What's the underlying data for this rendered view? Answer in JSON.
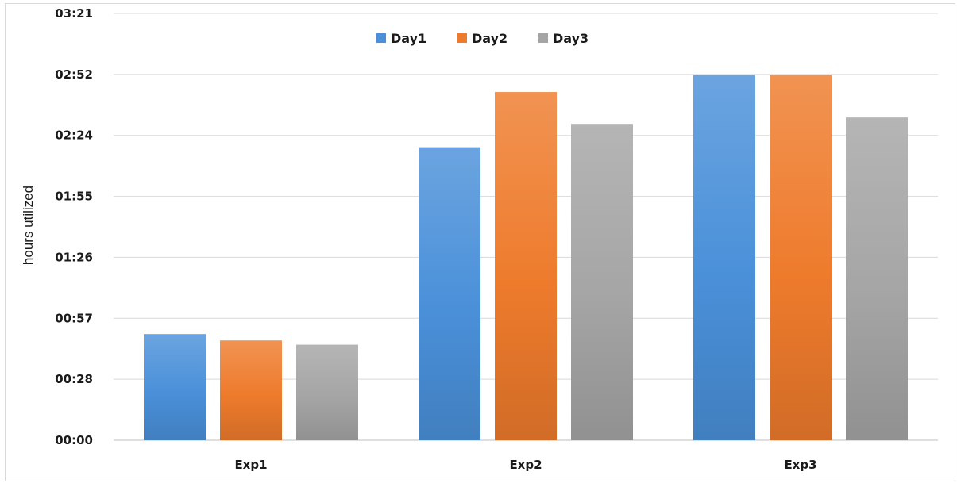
{
  "chart_data": {
    "type": "bar",
    "title": "",
    "xlabel": "",
    "ylabel": "hours utilized",
    "categories": [
      "Exp1",
      "Exp2",
      "Exp3"
    ],
    "y_ticks": [
      "00:00",
      "00:28",
      "00:57",
      "01:26",
      "01:55",
      "02:24",
      "02:52",
      "03:21"
    ],
    "ylim_minutes": [
      0,
      201
    ],
    "series": [
      {
        "name": "Day1",
        "color": "#4a90d9",
        "values_minutes": [
          50,
          138,
          172
        ]
      },
      {
        "name": "Day2",
        "color": "#ee7b2c",
        "values_minutes": [
          47,
          164,
          172
        ]
      },
      {
        "name": "Day3",
        "color": "#a5a5a5",
        "values_minutes": [
          45,
          149,
          152
        ]
      }
    ],
    "grid": true,
    "legend_position": "top-center"
  }
}
